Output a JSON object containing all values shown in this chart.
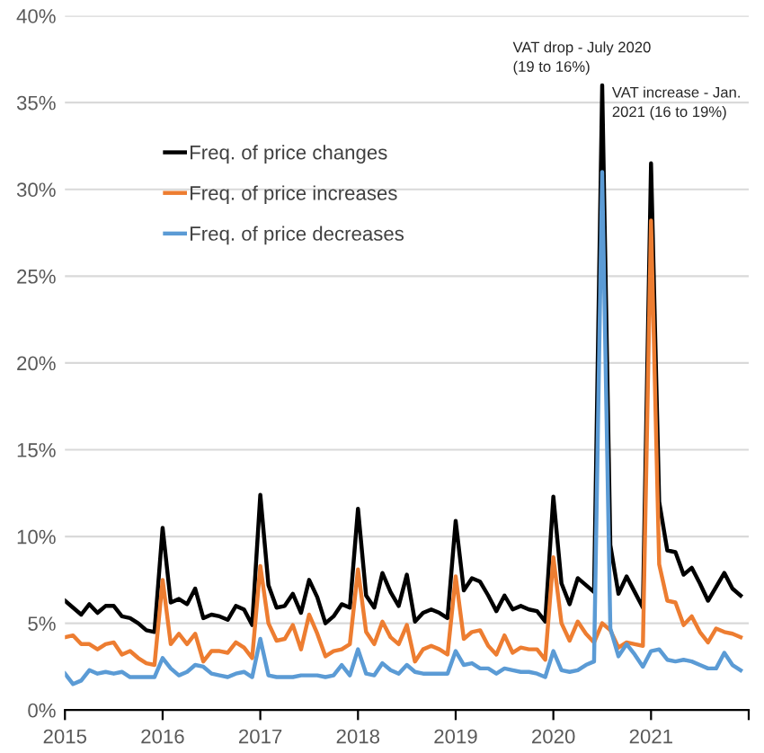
{
  "chart_data": {
    "type": "line",
    "x": [
      "2015-01",
      "2015-02",
      "2015-03",
      "2015-04",
      "2015-05",
      "2015-06",
      "2015-07",
      "2015-08",
      "2015-09",
      "2015-10",
      "2015-11",
      "2015-12",
      "2016-01",
      "2016-02",
      "2016-03",
      "2016-04",
      "2016-05",
      "2016-06",
      "2016-07",
      "2016-08",
      "2016-09",
      "2016-10",
      "2016-11",
      "2016-12",
      "2017-01",
      "2017-02",
      "2017-03",
      "2017-04",
      "2017-05",
      "2017-06",
      "2017-07",
      "2017-08",
      "2017-09",
      "2017-10",
      "2017-11",
      "2017-12",
      "2018-01",
      "2018-02",
      "2018-03",
      "2018-04",
      "2018-05",
      "2018-06",
      "2018-07",
      "2018-08",
      "2018-09",
      "2018-10",
      "2018-11",
      "2018-12",
      "2019-01",
      "2019-02",
      "2019-03",
      "2019-04",
      "2019-05",
      "2019-06",
      "2019-07",
      "2019-08",
      "2019-09",
      "2019-10",
      "2019-11",
      "2019-12",
      "2020-01",
      "2020-02",
      "2020-03",
      "2020-04",
      "2020-05",
      "2020-06",
      "2020-07",
      "2020-08",
      "2020-09",
      "2020-10",
      "2020-11",
      "2020-12",
      "2021-01",
      "2021-02",
      "2021-03",
      "2021-04",
      "2021-05",
      "2021-06",
      "2021-07",
      "2021-08",
      "2021-09",
      "2021-10",
      "2021-11",
      "2021-12"
    ],
    "series": [
      {
        "name": "Freq. of price changes",
        "color": "#000000",
        "values": [
          6.3,
          5.9,
          5.5,
          6.1,
          5.6,
          6.0,
          6.0,
          5.4,
          5.3,
          5.0,
          4.6,
          4.5,
          10.5,
          6.2,
          6.4,
          6.1,
          7.0,
          5.3,
          5.5,
          5.4,
          5.2,
          6.0,
          5.8,
          4.9,
          12.4,
          7.2,
          5.9,
          6.0,
          6.7,
          5.6,
          7.5,
          6.5,
          5.0,
          5.4,
          6.1,
          5.9,
          11.6,
          6.6,
          5.9,
          7.9,
          6.8,
          6.0,
          7.8,
          5.1,
          5.6,
          5.8,
          5.6,
          5.3,
          10.9,
          6.9,
          7.6,
          7.4,
          6.6,
          5.7,
          6.6,
          5.8,
          6.0,
          5.8,
          5.7,
          5.1,
          12.3,
          7.3,
          6.1,
          7.6,
          7.2,
          6.8,
          36.0,
          9.5,
          6.7,
          7.7,
          6.8,
          5.9,
          31.5,
          12.0,
          9.2,
          9.1,
          7.8,
          8.2,
          7.3,
          6.3,
          7.1,
          7.9,
          7.0,
          6.6
        ]
      },
      {
        "name": "Freq. of price increases",
        "color": "#ed7d31",
        "values": [
          4.2,
          4.3,
          3.8,
          3.8,
          3.5,
          3.8,
          3.9,
          3.2,
          3.4,
          3.0,
          2.7,
          2.6,
          7.5,
          3.8,
          4.4,
          3.8,
          4.4,
          2.8,
          3.4,
          3.4,
          3.3,
          3.9,
          3.6,
          3.0,
          8.3,
          5.0,
          4.0,
          4.1,
          4.9,
          3.5,
          5.5,
          4.4,
          3.1,
          3.4,
          3.5,
          3.8,
          8.1,
          4.5,
          3.8,
          5.1,
          4.2,
          3.8,
          4.9,
          2.8,
          3.5,
          3.7,
          3.5,
          3.2,
          7.7,
          4.1,
          4.5,
          4.6,
          3.7,
          3.2,
          4.3,
          3.3,
          3.6,
          3.5,
          3.5,
          2.9,
          8.8,
          5.0,
          4.0,
          5.1,
          4.4,
          3.9,
          5.0,
          4.6,
          3.6,
          3.9,
          3.8,
          3.7,
          28.2,
          8.4,
          6.3,
          6.2,
          4.9,
          5.4,
          4.5,
          3.9,
          4.7,
          4.5,
          4.4,
          4.2
        ]
      },
      {
        "name": "Freq. of price decreases",
        "color": "#5b9bd5",
        "values": [
          2.1,
          1.5,
          1.7,
          2.3,
          2.1,
          2.2,
          2.1,
          2.2,
          1.9,
          1.9,
          1.9,
          1.9,
          3.0,
          2.4,
          2.0,
          2.2,
          2.6,
          2.5,
          2.1,
          2.0,
          1.9,
          2.1,
          2.2,
          1.9,
          4.1,
          2.0,
          1.9,
          1.9,
          1.9,
          2.0,
          2.0,
          2.0,
          1.9,
          2.0,
          2.6,
          2.0,
          3.5,
          2.1,
          2.0,
          2.7,
          2.3,
          2.1,
          2.6,
          2.2,
          2.1,
          2.1,
          2.1,
          2.1,
          3.4,
          2.6,
          2.7,
          2.4,
          2.4,
          2.1,
          2.4,
          2.3,
          2.2,
          2.2,
          2.1,
          1.9,
          3.4,
          2.3,
          2.2,
          2.3,
          2.6,
          2.8,
          31.0,
          4.7,
          3.1,
          3.8,
          3.2,
          2.5,
          3.4,
          3.5,
          2.9,
          2.8,
          2.9,
          2.8,
          2.6,
          2.4,
          2.4,
          3.3,
          2.6,
          2.3
        ]
      }
    ],
    "xlim": [
      "2015-01",
      "2022-01"
    ],
    "xticks": [
      {
        "value": "2015-01",
        "label": "2015"
      },
      {
        "value": "2016-01",
        "label": "2016"
      },
      {
        "value": "2017-01",
        "label": "2017"
      },
      {
        "value": "2018-01",
        "label": "2018"
      },
      {
        "value": "2019-01",
        "label": "2019"
      },
      {
        "value": "2020-01",
        "label": "2020"
      },
      {
        "value": "2021-01",
        "label": "2021"
      },
      {
        "value": "2022-01",
        "label": null
      }
    ],
    "ylim": [
      0,
      40
    ],
    "yticks": [
      {
        "value": 0,
        "label": "0%"
      },
      {
        "value": 5,
        "label": "5%"
      },
      {
        "value": 10,
        "label": "10%"
      },
      {
        "value": 15,
        "label": "15%"
      },
      {
        "value": 20,
        "label": "20%"
      },
      {
        "value": 25,
        "label": "25%"
      },
      {
        "value": 30,
        "label": "30%"
      },
      {
        "value": 35,
        "label": "35%"
      },
      {
        "value": 40,
        "label": "40%"
      }
    ],
    "grid": "y",
    "legend": "top left",
    "marker": "none",
    "line_style": "solid",
    "annotations": [
      "VAT drop - July 2020\n(19 to 16%)",
      "VAT increase - Jan.\n2021 (16 to 19%)"
    ]
  }
}
